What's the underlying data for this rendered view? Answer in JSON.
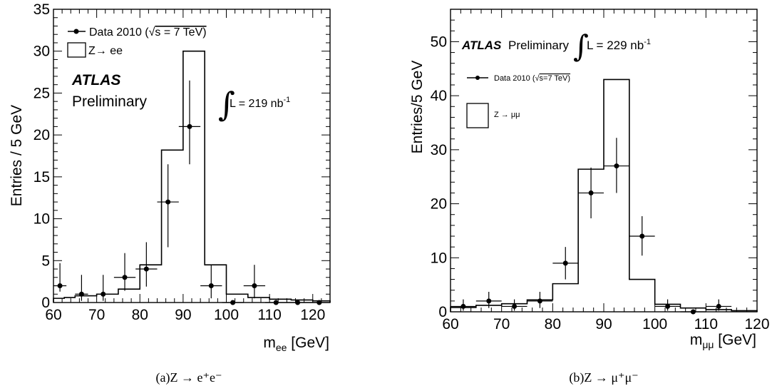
{
  "chart_data": [
    {
      "type": "histogram",
      "ylabel": "Entries / 5 GeV",
      "xlabel": "m",
      "xlabel_sub": "ee",
      "xlabel_unit": " [GeV]",
      "xlim": [
        60,
        124
      ],
      "ylim": [
        0,
        35
      ],
      "xticks": [
        60,
        70,
        80,
        90,
        100,
        110,
        120
      ],
      "yticks": [
        0,
        5,
        10,
        15,
        20,
        25,
        30,
        35
      ],
      "legend": {
        "data_label": "Data 2010 (",
        "data_sqrt": "√",
        "data_rest": "s = 7 TeV)",
        "mc_label": "Z→ ee",
        "position": "top-left"
      },
      "atlas": "ATLAS",
      "preliminary": "Preliminary",
      "lumi_integral": "∫",
      "lumi_text": "L = 219 nb",
      "lumi_exp": "-1",
      "caption": "(a)Z → e⁺e⁻",
      "mc_edges": [
        60,
        62.5,
        65,
        70,
        75,
        80,
        85,
        90,
        95,
        100,
        105,
        110,
        115,
        120,
        124
      ],
      "mc_values": [
        0.5,
        0.6,
        0.8,
        1.0,
        1.6,
        4.5,
        18.2,
        30.0,
        4.5,
        1.0,
        0.6,
        0.4,
        0.3,
        0.2
      ],
      "data_points": [
        {
          "x": 61.5,
          "y": 2,
          "xerr": 1.5,
          "ylo": 1.3,
          "yhi": 4.7
        },
        {
          "x": 66.5,
          "y": 1,
          "xerr": 1.5,
          "ylo": 0.2,
          "yhi": 3.3
        },
        {
          "x": 71.5,
          "y": 1,
          "xerr": 1.5,
          "ylo": 0.2,
          "yhi": 3.3
        },
        {
          "x": 76.5,
          "y": 3,
          "xerr": 2.5,
          "ylo": 1.4,
          "yhi": 5.9
        },
        {
          "x": 81.5,
          "y": 4,
          "xerr": 2.5,
          "ylo": 1.9,
          "yhi": 7.2
        },
        {
          "x": 86.5,
          "y": 12,
          "xerr": 2.5,
          "ylo": 6.6,
          "yhi": 16.5
        },
        {
          "x": 91.5,
          "y": 21,
          "xerr": 2.5,
          "ylo": 16.5,
          "yhi": 26.5
        },
        {
          "x": 96.5,
          "y": 2,
          "xerr": 2.5,
          "ylo": 0.5,
          "yhi": 4.5
        },
        {
          "x": 101.5,
          "y": 0,
          "xerr": 2.5,
          "ylo": 0,
          "yhi": 0
        },
        {
          "x": 106.5,
          "y": 2,
          "xerr": 2.5,
          "ylo": 0.5,
          "yhi": 4.5
        },
        {
          "x": 111.5,
          "y": 0,
          "xerr": 2.5,
          "ylo": 0,
          "yhi": 0
        },
        {
          "x": 116.5,
          "y": 0,
          "xerr": 2.5,
          "ylo": 0,
          "yhi": 0
        },
        {
          "x": 121.5,
          "y": 0,
          "xerr": 2.5,
          "ylo": 0,
          "yhi": 0
        }
      ]
    },
    {
      "type": "histogram",
      "ylabel": "Entries/5 GeV",
      "xlabel": "m",
      "xlabel_sub": "μμ",
      "xlabel_unit": " [GeV]",
      "xlim": [
        60,
        120
      ],
      "ylim": [
        0,
        56
      ],
      "xticks": [
        60,
        70,
        80,
        90,
        100,
        110,
        120
      ],
      "yticks": [
        0,
        10,
        20,
        30,
        40,
        50
      ],
      "legend": {
        "data_label": "Data 2010 (",
        "data_sqrt": "√",
        "data_rest": "s=7 TeV)",
        "mc_label": "Z → μμ",
        "position": "top-left"
      },
      "atlas": "ATLAS",
      "preliminary": "Preliminary",
      "lumi_integral": "∫",
      "lumi_text": "L = 229 nb",
      "lumi_exp": "-1",
      "caption": "(b)Z → μ⁺μ⁻",
      "mc_edges": [
        60,
        65,
        70,
        75,
        80,
        85,
        90,
        95,
        100,
        105,
        110,
        115,
        120
      ],
      "mc_values": [
        0.8,
        1.2,
        1.5,
        2.2,
        5.2,
        26.4,
        43.0,
        6.0,
        1.4,
        0.7,
        0.4,
        0.2
      ],
      "data_points": [
        {
          "x": 62.5,
          "y": 1,
          "xerr": 2.5,
          "ylo": 0.2,
          "yhi": 2.3
        },
        {
          "x": 67.5,
          "y": 2,
          "xerr": 2.5,
          "ylo": 0.7,
          "yhi": 3.7
        },
        {
          "x": 72.5,
          "y": 1,
          "xerr": 2.5,
          "ylo": 0.2,
          "yhi": 2.3
        },
        {
          "x": 77.5,
          "y": 2,
          "xerr": 2.5,
          "ylo": 0.7,
          "yhi": 3.7
        },
        {
          "x": 82.5,
          "y": 9,
          "xerr": 2.5,
          "ylo": 6.0,
          "yhi": 12.0
        },
        {
          "x": 87.5,
          "y": 22,
          "xerr": 2.5,
          "ylo": 17.3,
          "yhi": 26.7
        },
        {
          "x": 92.5,
          "y": 27,
          "xerr": 2.5,
          "ylo": 22.0,
          "yhi": 32.2
        },
        {
          "x": 97.5,
          "y": 14,
          "xerr": 2.5,
          "ylo": 10.4,
          "yhi": 17.7
        },
        {
          "x": 102.5,
          "y": 1,
          "xerr": 2.5,
          "ylo": 0.2,
          "yhi": 2.3
        },
        {
          "x": 107.5,
          "y": 0,
          "xerr": 2.5,
          "ylo": 0,
          "yhi": 0
        },
        {
          "x": 112.5,
          "y": 1,
          "xerr": 2.5,
          "ylo": 0.2,
          "yhi": 2.3
        }
      ]
    }
  ]
}
